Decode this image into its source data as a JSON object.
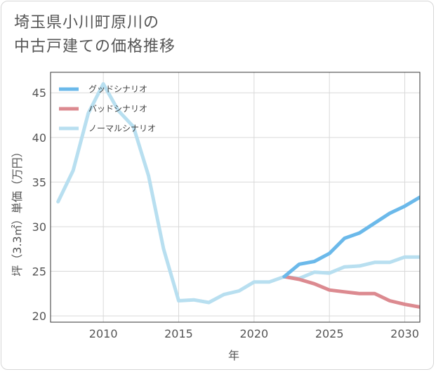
{
  "title_lines": [
    "埼玉県小川町原川の",
    "中古戸建ての価格推移"
  ],
  "chart_data": {
    "type": "line",
    "title": "埼玉県小川町原川の中古戸建ての価格推移",
    "xlabel": "年",
    "ylabel": "坪（3.3㎡）単価（万円）",
    "xlim": [
      2006.5,
      2031
    ],
    "ylim": [
      19.3,
      47.3
    ],
    "xticks": [
      2010,
      2015,
      2020,
      2025,
      2030
    ],
    "yticks": [
      20,
      25,
      30,
      35,
      40,
      45
    ],
    "grid": true,
    "legend_position": "top-left",
    "series": [
      {
        "name": "グッドシナリオ",
        "color": "#6bb9ea",
        "x": [
          2022,
          2023,
          2024,
          2025,
          2026,
          2027,
          2028,
          2029,
          2030,
          2031
        ],
        "values": [
          24.4,
          25.8,
          26.1,
          27.0,
          28.7,
          29.3,
          30.4,
          31.5,
          32.3,
          33.3
        ]
      },
      {
        "name": "バッドシナリオ",
        "color": "#dc8a90",
        "x": [
          2022,
          2023,
          2024,
          2025,
          2026,
          2027,
          2028,
          2029,
          2030,
          2031
        ],
        "values": [
          24.4,
          24.1,
          23.6,
          22.9,
          22.7,
          22.5,
          22.5,
          21.7,
          21.3,
          21.0
        ]
      },
      {
        "name": "ノーマルシナリオ",
        "color": "#b8dff0",
        "x": [
          2007,
          2008,
          2009,
          2010,
          2011,
          2012,
          2013,
          2014,
          2015,
          2016,
          2017,
          2018,
          2019,
          2020,
          2021,
          2022,
          2023,
          2024,
          2025,
          2026,
          2027,
          2028,
          2029,
          2030,
          2031
        ],
        "values": [
          32.8,
          36.3,
          42.7,
          46.0,
          43.0,
          41.2,
          35.7,
          27.5,
          21.7,
          21.8,
          21.5,
          22.4,
          22.8,
          23.8,
          23.8,
          24.4,
          24.2,
          24.9,
          24.8,
          25.5,
          25.6,
          26.0,
          26.0,
          26.6,
          26.6
        ]
      }
    ]
  }
}
